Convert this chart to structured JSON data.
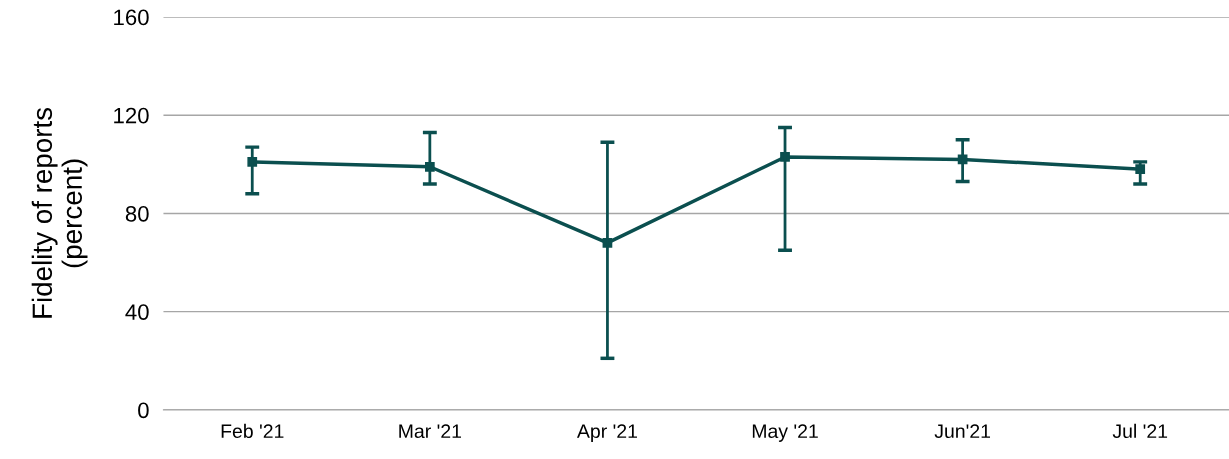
{
  "chart_data": {
    "type": "line",
    "ylabel": "Fidelity of reports\n(percent)",
    "categories": [
      "Feb '21",
      "Mar '21",
      "Apr '21",
      "May '21",
      "Jun'21",
      "Jul '21"
    ],
    "series": [
      {
        "color": "#0b4f4f",
        "values": [
          101,
          99,
          68,
          103,
          102,
          98
        ],
        "errors": [
          [
            88,
            107
          ],
          [
            92,
            113
          ],
          [
            21,
            109
          ],
          [
            65,
            115
          ],
          [
            93,
            110
          ],
          [
            92,
            101
          ]
        ]
      }
    ],
    "ylim": [
      0,
      160
    ],
    "yticks": [
      0,
      40,
      80,
      120,
      160
    ],
    "grid": "y",
    "marker": "square",
    "line_style": "solid"
  }
}
